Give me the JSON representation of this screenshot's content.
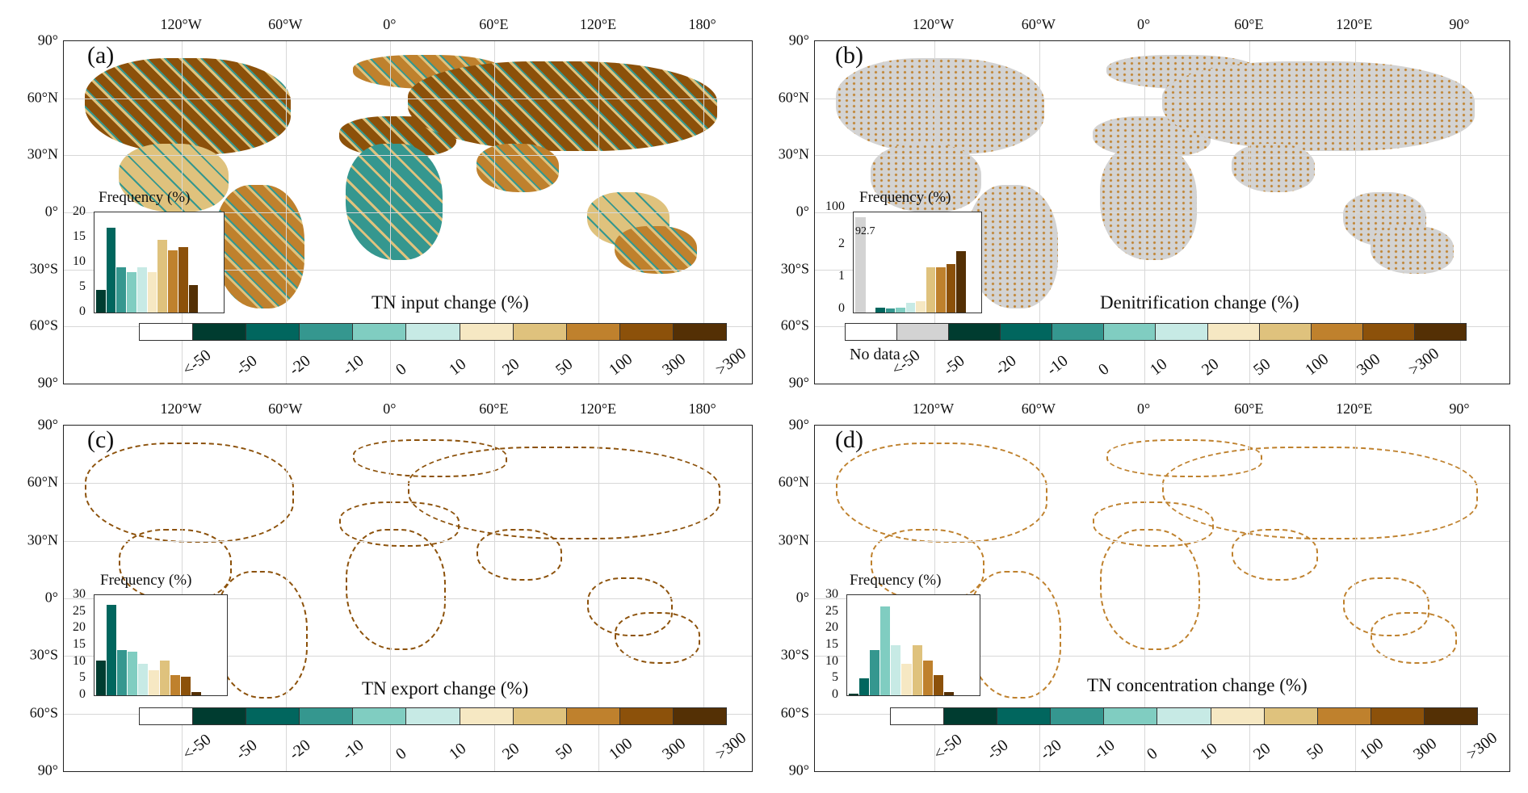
{
  "colors": {
    "nodata": "#ffffff",
    "grey": "#d3d3d3",
    "c1": "#003c30",
    "c2": "#01665e",
    "c3": "#35978f",
    "c4": "#80cdc1",
    "c5": "#c7eae5",
    "c6": "#f6e8c3",
    "c7": "#dfc27d",
    "c8": "#bf812d",
    "c9": "#8c510a",
    "c10": "#543005"
  },
  "lat_labels": [
    "90°",
    "60°N",
    "30°N",
    "0°",
    "30°S",
    "60°S",
    "90°"
  ],
  "panels": [
    {
      "id": "a",
      "label": "(a)",
      "lon_labels": [
        "120°W",
        "60°W",
        "0°",
        "60°E",
        "120°E",
        "180°"
      ],
      "title": "TN input change (%)",
      "inset_title": "Frequency (%)",
      "yticks": [
        "20",
        "15",
        "10",
        "5",
        "0"
      ],
      "freq": [
        4.5,
        17,
        9,
        8,
        9,
        8,
        14.5,
        12.5,
        13,
        5.5
      ],
      "ymax": 20,
      "legend_labels": [
        "<-50",
        "-50",
        "-20",
        "-10",
        "0",
        "10",
        "20",
        "50",
        "100",
        "300",
        ">300"
      ]
    },
    {
      "id": "b",
      "label": "(b)",
      "lon_labels": [
        "120°W",
        "60°W",
        "0°",
        "60°E",
        "120°E",
        "90°"
      ],
      "title": "Denitrification change (%)",
      "inset_title": "Frequency (%)",
      "yticks": [
        "100",
        "2",
        "1",
        "0"
      ],
      "grey_value": "92.7",
      "freq": [
        0.15,
        0.12,
        0.15,
        0.3,
        0.35,
        1.4,
        1.4,
        1.5,
        1.9
      ],
      "nodata_label": "No data",
      "legend_labels": [
        "<-50",
        "-50",
        "-20",
        "-10",
        "0",
        "10",
        "20",
        "50",
        "100",
        "300",
        ">300"
      ]
    },
    {
      "id": "c",
      "label": "(c)",
      "lon_labels": [
        "120°W",
        "60°W",
        "0°",
        "60°E",
        "120°E",
        "180°"
      ],
      "title": "TN export change (%)",
      "inset_title": "Frequency (%)",
      "yticks": [
        "30",
        "25",
        "20",
        "15",
        "10",
        "5",
        "0"
      ],
      "freq": [
        10.5,
        27,
        13.5,
        13,
        9.5,
        7.5,
        10.5,
        6,
        5.5,
        1
      ],
      "ymax": 30,
      "legend_labels": [
        "<-50",
        "-50",
        "-20",
        "-10",
        "0",
        "10",
        "20",
        "50",
        "100",
        "300",
        ">300"
      ]
    },
    {
      "id": "d",
      "label": "(d)",
      "lon_labels": [
        "120°W",
        "60°W",
        "0°",
        "60°E",
        "120°E",
        "90°"
      ],
      "title": "TN concentration change (%)",
      "inset_title": "Frequency (%)",
      "yticks": [
        "30",
        "25",
        "20",
        "15",
        "10",
        "5",
        "0"
      ],
      "freq": [
        0.5,
        5,
        13.5,
        26.5,
        15,
        9.5,
        15,
        10.5,
        6,
        1
      ],
      "ymax": 30,
      "legend_labels": [
        "<-50",
        "-50",
        "-20",
        "-10",
        "0",
        "10",
        "20",
        "50",
        "100",
        "300",
        ">300"
      ]
    }
  ]
}
